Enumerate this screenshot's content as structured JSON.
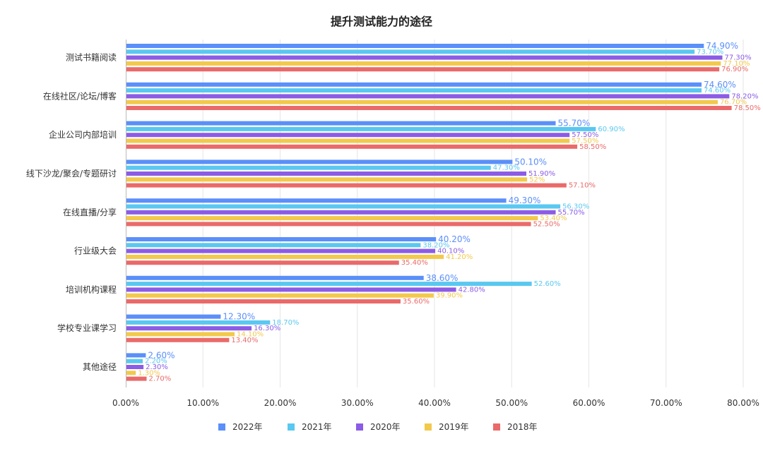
{
  "chart_data": {
    "type": "bar",
    "orientation": "horizontal",
    "title": "提升测试能力的途径",
    "categories": [
      "测试书籍阅读",
      "在线社区/论坛/博客",
      "企业公司内部培训",
      "线下沙龙/聚会/专题研讨",
      "在线直播/分享",
      "行业级大会",
      "培训机构课程",
      "学校专业课学习",
      "其他途径"
    ],
    "series": [
      {
        "name": "2022年",
        "color": "#5b8ff9",
        "values": [
          74.9,
          74.6,
          55.7,
          50.1,
          49.3,
          40.2,
          38.6,
          12.3,
          2.6
        ],
        "labels": [
          "74.90%",
          "74.60%",
          "55.70%",
          "50.10%",
          "49.30%",
          "40.20%",
          "38.60%",
          "12.30%",
          "2.60%"
        ]
      },
      {
        "name": "2021年",
        "color": "#5ac8f0",
        "values": [
          73.7,
          74.6,
          60.9,
          47.3,
          56.3,
          38.2,
          52.6,
          18.7,
          2.2
        ],
        "labels": [
          "73.70%",
          "74.60%",
          "60.90%",
          "47.30%",
          "56.30%",
          "38.20%",
          "52.60%",
          "18.70%",
          "2.20%"
        ]
      },
      {
        "name": "2020年",
        "color": "#8b5ce6",
        "values": [
          77.3,
          78.2,
          57.5,
          51.9,
          55.7,
          40.1,
          42.8,
          16.3,
          2.3
        ],
        "labels": [
          "77.30%",
          "78.20%",
          "57.50%",
          "51.90%",
          "55.70%",
          "40.10%",
          "42.80%",
          "16.30%",
          "2.30%"
        ]
      },
      {
        "name": "2019年",
        "color": "#f2c94c",
        "values": [
          77.1,
          76.7,
          57.5,
          52.0,
          53.4,
          41.2,
          39.9,
          14.1,
          1.3
        ],
        "labels": [
          "77.10%",
          "76.70%",
          "57.50%",
          "52%",
          "53.40%",
          "41.20%",
          "39.90%",
          "14.10%",
          "1.30%"
        ]
      },
      {
        "name": "2018年",
        "color": "#ea6a6a",
        "values": [
          76.9,
          78.5,
          58.5,
          57.1,
          52.5,
          35.4,
          35.6,
          13.4,
          2.7
        ],
        "labels": [
          "76.90%",
          "78.50%",
          "58.50%",
          "57.10%",
          "52.50%",
          "35.40%",
          "35.60%",
          "13.40%",
          "2.70%"
        ]
      }
    ],
    "xlim": [
      0,
      80
    ],
    "xticks": [
      0,
      10,
      20,
      30,
      40,
      50,
      60,
      70,
      80
    ],
    "xtick_labels": [
      "0.00%",
      "10.00%",
      "20.00%",
      "30.00%",
      "40.00%",
      "50.00%",
      "60.00%",
      "70.00%",
      "80.00%"
    ],
    "xlabel": "",
    "ylabel": "",
    "grid": true,
    "legend_position": "bottom"
  }
}
